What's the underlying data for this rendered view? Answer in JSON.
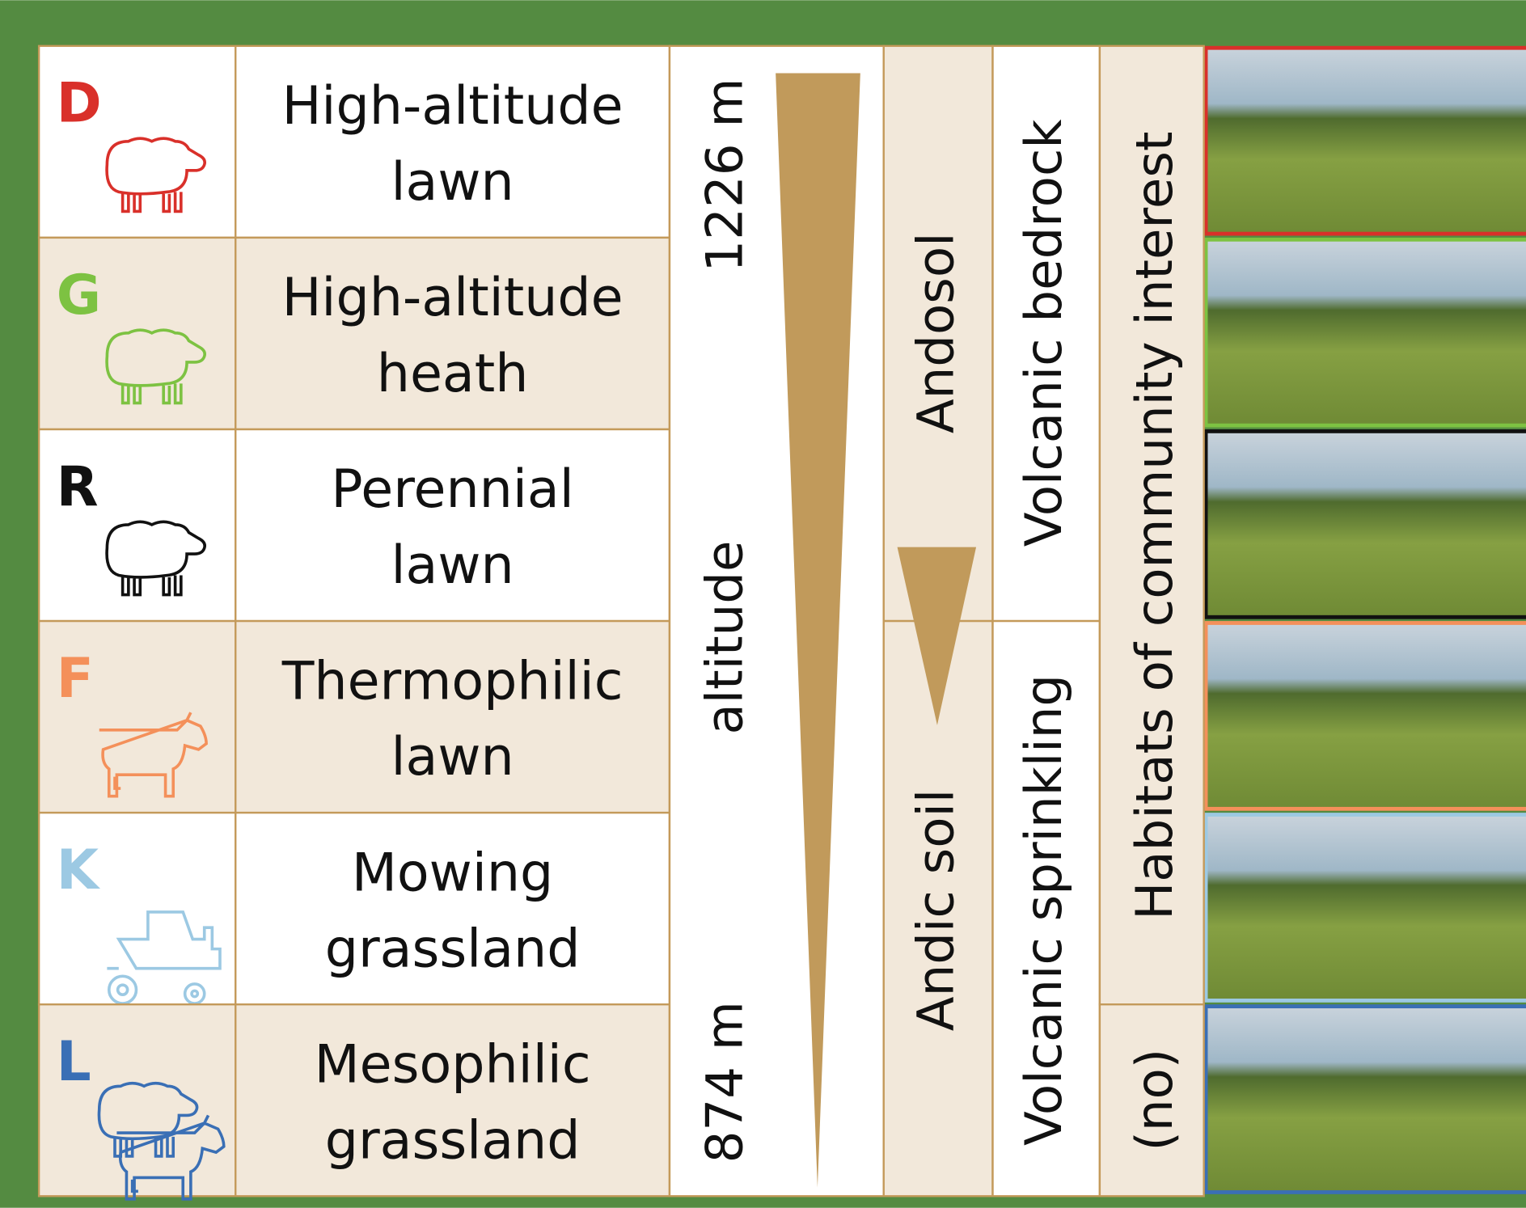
{
  "rows": [
    {
      "code": "D",
      "name": [
        "High-altitude",
        "lawn"
      ]
    },
    {
      "code": "G",
      "name": [
        "High-altitude",
        "heath"
      ]
    },
    {
      "code": "R",
      "name": [
        "Perennial",
        "lawn"
      ]
    },
    {
      "code": "F",
      "name": [
        "Thermophilic",
        "lawn"
      ]
    },
    {
      "code": "K",
      "name": [
        "Mowing",
        "grassland"
      ]
    },
    {
      "code": "L",
      "name": [
        "Mesophilic",
        "grassland"
      ]
    }
  ],
  "altitude": {
    "top": "1226 m",
    "label": "altitude",
    "bottom": "874 m"
  },
  "soil": {
    "upper": "Andosol",
    "lower": "Andic soil"
  },
  "bedrock": {
    "upper": "Volcanic bedrock",
    "lower": "Volcanic sprinkling"
  },
  "habitat": {
    "upper": "Habitats of community interest",
    "lower": "(no)"
  }
}
